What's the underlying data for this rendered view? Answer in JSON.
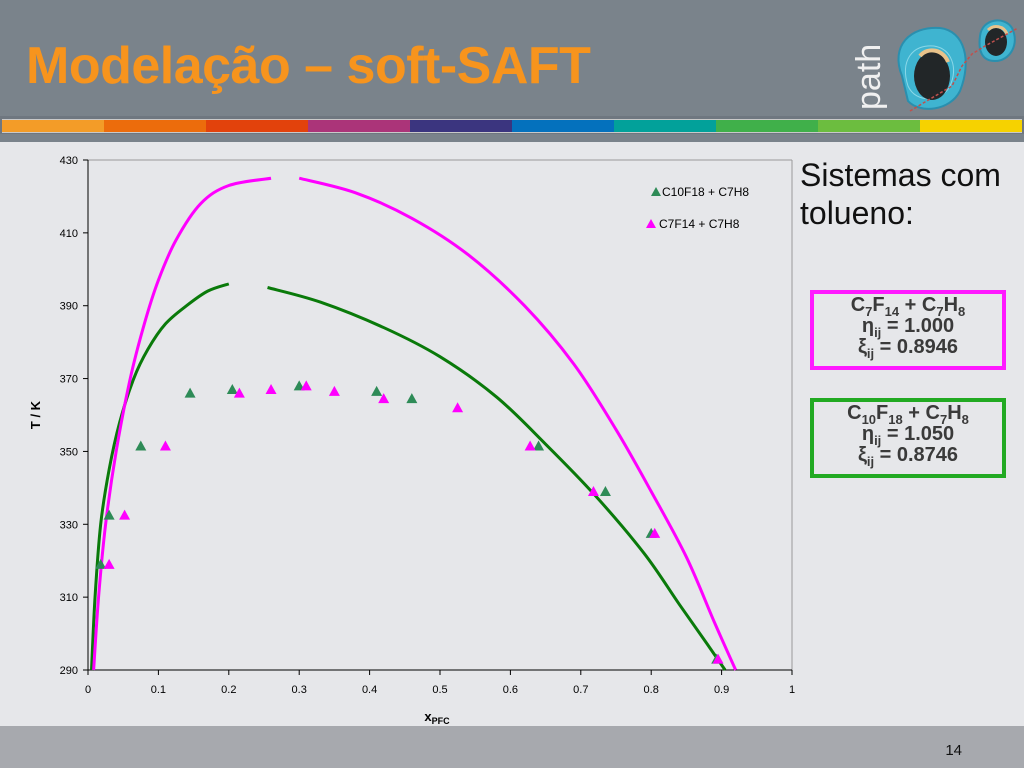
{
  "header": {
    "title": "Modelação – soft-SAFT",
    "logo_text": "path",
    "stripe_colors": [
      "#f39c28",
      "#ec6c0c",
      "#e2420c",
      "#ab3479",
      "#3b357f",
      "#0471bd",
      "#02a19a",
      "#40b04a",
      "#6cbd3f",
      "#f6d200"
    ]
  },
  "side_panel": {
    "heading_line1": "Sistemas com",
    "heading_line2": "tolueno:",
    "boxes": [
      {
        "system": {
          "c1": "C",
          "s1": "7",
          "c2": "F",
          "s2": "14",
          "plus": " + C",
          "s3": "7",
          "c3": "H",
          "s4": "8"
        },
        "eta_label": "η",
        "eta_sub": "ij",
        "eta_value": " = 1.000",
        "xi_label": "ξ",
        "xi_sub": "ij",
        "xi_value": " = 0.8946",
        "border_color": "#ff1aff"
      },
      {
        "system": {
          "c1": "C",
          "s1": "10",
          "c2": "F",
          "s2": "18",
          "plus": " + C",
          "s3": "7",
          "c3": "H",
          "s4": "8"
        },
        "eta_label": "η",
        "eta_sub": "ij",
        "eta_value": " = 1.050",
        "xi_label": "ξ",
        "xi_sub": "ij",
        "xi_value": " = 0.8746",
        "border_color": "#22aa22"
      }
    ]
  },
  "footer": {
    "page_number": "14"
  },
  "chart_data": {
    "type": "scatter",
    "title": "",
    "xlabel": "x",
    "xlabel_sub": "PFC",
    "ylabel": "T / K",
    "xlim": [
      0,
      1
    ],
    "ylim": [
      290,
      430
    ],
    "x_ticks": [
      "0",
      "0.1",
      "0.2",
      "0.3",
      "0.4",
      "0.5",
      "0.6",
      "0.7",
      "0.8",
      "0.9",
      "1"
    ],
    "y_ticks": [
      "290",
      "310",
      "330",
      "350",
      "370",
      "390",
      "410",
      "430"
    ],
    "grid": false,
    "legend_position": "upper right (inside)",
    "series": [
      {
        "name": "C10F18 + C7H8",
        "marker": "triangle",
        "color": "#2e8b57",
        "points": [
          [
            0.018,
            319
          ],
          [
            0.03,
            332.5
          ],
          [
            0.075,
            351.5
          ],
          [
            0.145,
            366
          ],
          [
            0.205,
            367
          ],
          [
            0.3,
            368
          ],
          [
            0.41,
            366.5
          ],
          [
            0.46,
            364.5
          ],
          [
            0.64,
            351.5
          ],
          [
            0.735,
            339
          ],
          [
            0.8,
            327.5
          ],
          [
            0.893,
            293
          ]
        ]
      },
      {
        "name": "C7F14 + C7H8",
        "marker": "triangle",
        "color": "#ff00ff",
        "points": [
          [
            0.03,
            319
          ],
          [
            0.052,
            332.5
          ],
          [
            0.11,
            351.5
          ],
          [
            0.215,
            366
          ],
          [
            0.26,
            367
          ],
          [
            0.31,
            368
          ],
          [
            0.35,
            366.5
          ],
          [
            0.42,
            364.5
          ],
          [
            0.525,
            362
          ],
          [
            0.628,
            351.5
          ],
          [
            0.718,
            339
          ],
          [
            0.805,
            327.5
          ],
          [
            0.895,
            293
          ]
        ]
      }
    ],
    "model_curves": [
      {
        "name": "soft-SAFT C10F18 + C7H8",
        "color": "#0a7a0a",
        "left_branch": [
          [
            0.005,
            290
          ],
          [
            0.01,
            310
          ],
          [
            0.018,
            330
          ],
          [
            0.03,
            345
          ],
          [
            0.045,
            358
          ],
          [
            0.065,
            370
          ],
          [
            0.085,
            378
          ],
          [
            0.11,
            385
          ],
          [
            0.14,
            390
          ],
          [
            0.17,
            394
          ],
          [
            0.2,
            396
          ]
        ],
        "right_branch": [
          [
            0.255,
            395
          ],
          [
            0.33,
            391
          ],
          [
            0.42,
            384
          ],
          [
            0.5,
            376
          ],
          [
            0.58,
            365
          ],
          [
            0.65,
            352
          ],
          [
            0.72,
            338
          ],
          [
            0.79,
            322
          ],
          [
            0.84,
            308
          ],
          [
            0.88,
            297
          ],
          [
            0.905,
            290
          ]
        ]
      },
      {
        "name": "soft-SAFT C7F14 + C7H8",
        "color": "#ff00ff",
        "left_branch": [
          [
            0.008,
            290
          ],
          [
            0.015,
            310
          ],
          [
            0.025,
            330
          ],
          [
            0.04,
            350
          ],
          [
            0.06,
            370
          ],
          [
            0.08,
            385
          ],
          [
            0.1,
            397
          ],
          [
            0.125,
            408
          ],
          [
            0.16,
            418
          ],
          [
            0.2,
            423
          ],
          [
            0.26,
            425
          ]
        ],
        "right_branch": [
          [
            0.3,
            425
          ],
          [
            0.38,
            421
          ],
          [
            0.46,
            414
          ],
          [
            0.54,
            404
          ],
          [
            0.62,
            390
          ],
          [
            0.69,
            374
          ],
          [
            0.75,
            356
          ],
          [
            0.8,
            339
          ],
          [
            0.85,
            321
          ],
          [
            0.89,
            303
          ],
          [
            0.92,
            290
          ]
        ]
      }
    ]
  }
}
